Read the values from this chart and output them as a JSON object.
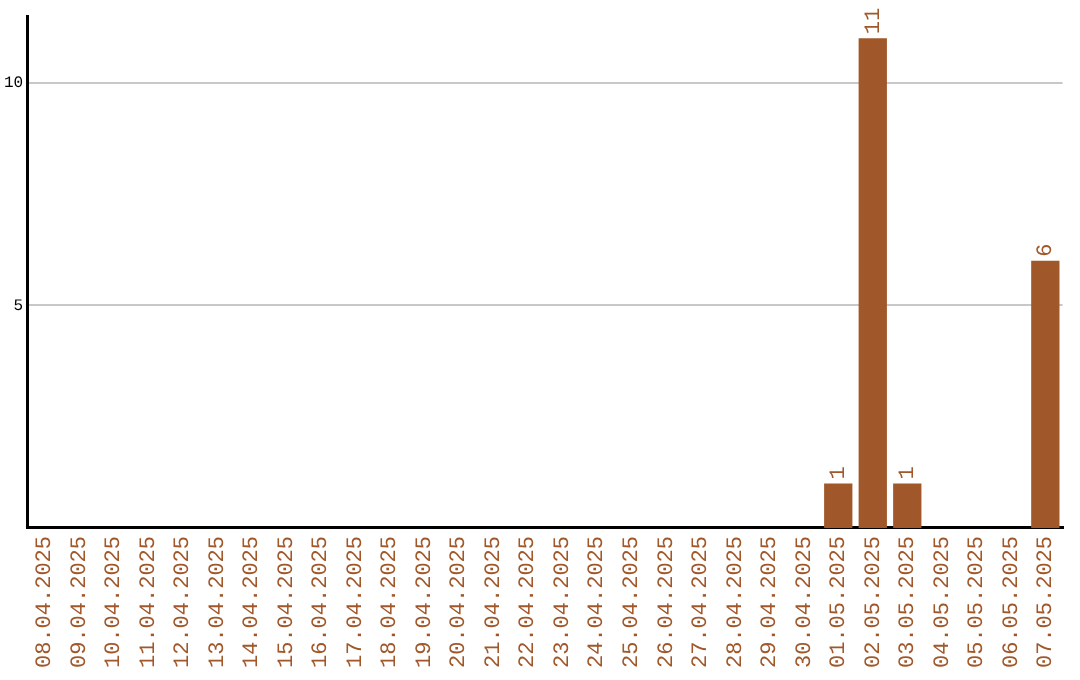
{
  "chart_data": {
    "type": "bar",
    "categories": [
      "08.04.2025",
      "09.04.2025",
      "10.04.2025",
      "11.04.2025",
      "12.04.2025",
      "13.04.2025",
      "14.04.2025",
      "15.04.2025",
      "16.04.2025",
      "17.04.2025",
      "18.04.2025",
      "19.04.2025",
      "20.04.2025",
      "21.04.2025",
      "22.04.2025",
      "23.04.2025",
      "24.04.2025",
      "25.04.2025",
      "26.04.2025",
      "27.04.2025",
      "28.04.2025",
      "29.04.2025",
      "30.04.2025",
      "01.05.2025",
      "02.05.2025",
      "03.05.2025",
      "04.05.2025",
      "05.05.2025",
      "06.05.2025",
      "07.05.2025"
    ],
    "values": [
      0,
      0,
      0,
      0,
      0,
      0,
      0,
      0,
      0,
      0,
      0,
      0,
      0,
      0,
      0,
      0,
      0,
      0,
      0,
      0,
      0,
      0,
      0,
      1,
      11,
      1,
      0,
      0,
      0,
      6
    ],
    "value_labels": [
      null,
      null,
      null,
      null,
      null,
      null,
      null,
      null,
      null,
      null,
      null,
      null,
      null,
      null,
      null,
      null,
      null,
      null,
      null,
      null,
      null,
      null,
      null,
      "1",
      "11",
      "1",
      null,
      null,
      null,
      "6"
    ],
    "color": "#a0582a",
    "ylim": [
      0,
      11.5
    ],
    "yticks": [
      5,
      10
    ],
    "grid": "y",
    "legend": false
  }
}
